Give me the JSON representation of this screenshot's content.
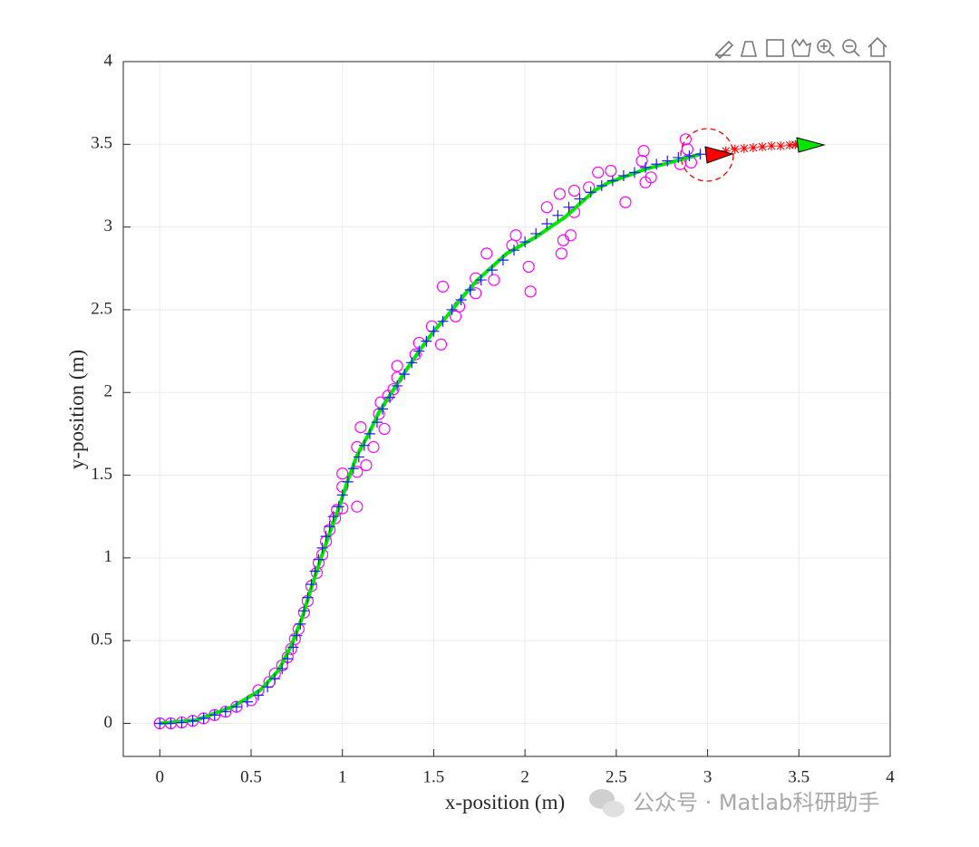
{
  "chart_data": {
    "type": "line",
    "xlabel": "x-position (m)",
    "ylabel": "y-position (m)",
    "xlim": [
      -0.2,
      4
    ],
    "ylim": [
      -0.2,
      4
    ],
    "xticks": [
      0,
      0.5,
      1,
      1.5,
      2,
      2.5,
      3,
      3.5,
      4
    ],
    "yticks": [
      0,
      0.5,
      1,
      1.5,
      2,
      2.5,
      3,
      3.5,
      4
    ],
    "grid": true,
    "series": [
      {
        "marker": "o",
        "color": "#ff00ff",
        "x": [
          0,
          0.06,
          0.12,
          0.18,
          0.24,
          0.3,
          0.36,
          0.42,
          0.5,
          0.54,
          0.6,
          0.63,
          0.67,
          0.7,
          0.72,
          0.74,
          0.76,
          0.79,
          0.81,
          0.83,
          0.86,
          0.87,
          0.89,
          0.91,
          0.93,
          0.96,
          0.97,
          1.0,
          1.08,
          1.0,
          1.0,
          1.08,
          1.08,
          1.13,
          1.1,
          1.17,
          1.2,
          1.21,
          1.23,
          1.25,
          1.3,
          1.3,
          1.28,
          1.4,
          1.42,
          1.49,
          1.54,
          1.55,
          1.62,
          1.64,
          1.73,
          1.73,
          1.79,
          1.83,
          1.95,
          1.93,
          2.02,
          2.03,
          2.12,
          2.19,
          2.2,
          2.21,
          2.25,
          2.27,
          2.27,
          2.35,
          2.4,
          2.47,
          2.55,
          2.64,
          2.65,
          2.66,
          2.69,
          2.85,
          2.88,
          2.89,
          2.91
        ],
        "y": [
          0,
          0,
          0.005,
          0.015,
          0.03,
          0.05,
          0.07,
          0.1,
          0.14,
          0.2,
          0.25,
          0.3,
          0.35,
          0.4,
          0.45,
          0.51,
          0.57,
          0.67,
          0.74,
          0.83,
          0.91,
          0.97,
          1.02,
          1.1,
          1.17,
          1.24,
          1.29,
          1.3,
          1.31,
          1.43,
          1.51,
          1.52,
          1.67,
          1.56,
          1.79,
          1.67,
          1.87,
          1.94,
          1.78,
          1.98,
          2.16,
          2.09,
          2.02,
          2.23,
          2.3,
          2.4,
          2.29,
          2.64,
          2.46,
          2.52,
          2.69,
          2.6,
          2.84,
          2.68,
          2.95,
          2.89,
          2.76,
          2.61,
          3.12,
          3.2,
          2.84,
          2.92,
          2.95,
          3.22,
          3.09,
          3.24,
          3.33,
          3.34,
          3.15,
          3.4,
          3.46,
          3.27,
          3.3,
          3.38,
          3.53,
          3.47,
          3.39
        ]
      },
      {
        "marker": "line",
        "color": "#00e600",
        "x": [
          0,
          0.2,
          0.4,
          0.55,
          0.65,
          0.72,
          0.78,
          0.83,
          0.88,
          0.93,
          0.98,
          1.03,
          1.08,
          1.14,
          1.2,
          1.27,
          1.34,
          1.42,
          1.5,
          1.58,
          1.66,
          1.74,
          1.82,
          1.9,
          1.98,
          2.06,
          2.14,
          2.22,
          2.3,
          2.38,
          2.46,
          2.56,
          2.66,
          2.76,
          2.86,
          2.96
        ],
        "y": [
          0,
          0.02,
          0.1,
          0.2,
          0.32,
          0.47,
          0.64,
          0.82,
          0.99,
          1.15,
          1.3,
          1.47,
          1.62,
          1.74,
          1.88,
          2.0,
          2.12,
          2.25,
          2.37,
          2.47,
          2.58,
          2.68,
          2.76,
          2.84,
          2.89,
          2.94,
          3.0,
          3.06,
          3.14,
          3.22,
          3.27,
          3.31,
          3.35,
          3.38,
          3.41,
          3.44
        ]
      },
      {
        "marker": "+",
        "color": "#1a1aff",
        "x": [
          0,
          0.06,
          0.12,
          0.18,
          0.24,
          0.3,
          0.36,
          0.42,
          0.48,
          0.54,
          0.59,
          0.63,
          0.67,
          0.7,
          0.73,
          0.75,
          0.77,
          0.79,
          0.81,
          0.83,
          0.85,
          0.87,
          0.89,
          0.91,
          0.93,
          0.95,
          0.98,
          1.0,
          1.03,
          1.06,
          1.09,
          1.12,
          1.15,
          1.19,
          1.22,
          1.26,
          1.3,
          1.34,
          1.38,
          1.42,
          1.46,
          1.5,
          1.55,
          1.6,
          1.65,
          1.7,
          1.76,
          1.82,
          1.88,
          1.94,
          2.0,
          2.06,
          2.12,
          2.18,
          2.24,
          2.3,
          2.36,
          2.42,
          2.48,
          2.54,
          2.6,
          2.66,
          2.72,
          2.78,
          2.84,
          2.9,
          2.96
        ],
        "y": [
          0,
          0,
          0.005,
          0.015,
          0.03,
          0.05,
          0.07,
          0.1,
          0.13,
          0.17,
          0.22,
          0.27,
          0.33,
          0.39,
          0.46,
          0.53,
          0.6,
          0.68,
          0.76,
          0.84,
          0.92,
          0.99,
          1.06,
          1.13,
          1.19,
          1.25,
          1.31,
          1.38,
          1.46,
          1.54,
          1.61,
          1.68,
          1.75,
          1.82,
          1.9,
          1.97,
          2.04,
          2.11,
          2.18,
          2.25,
          2.31,
          2.37,
          2.43,
          2.5,
          2.56,
          2.62,
          2.68,
          2.74,
          2.8,
          2.86,
          2.91,
          2.96,
          3.02,
          3.07,
          3.12,
          3.17,
          3.21,
          3.25,
          3.28,
          3.31,
          3.33,
          3.36,
          3.38,
          3.4,
          3.42,
          3.43,
          3.44
        ]
      },
      {
        "marker": "*",
        "color": "#ff0000",
        "x": [
          3.1,
          3.15,
          3.2,
          3.25,
          3.3,
          3.35,
          3.4,
          3.45,
          3.48,
          3.5
        ],
        "y": [
          3.46,
          3.47,
          3.475,
          3.48,
          3.485,
          3.49,
          3.49,
          3.495,
          3.498,
          3.5
        ]
      }
    ]
  },
  "watermark": "公众号 · Matlab科研助手"
}
